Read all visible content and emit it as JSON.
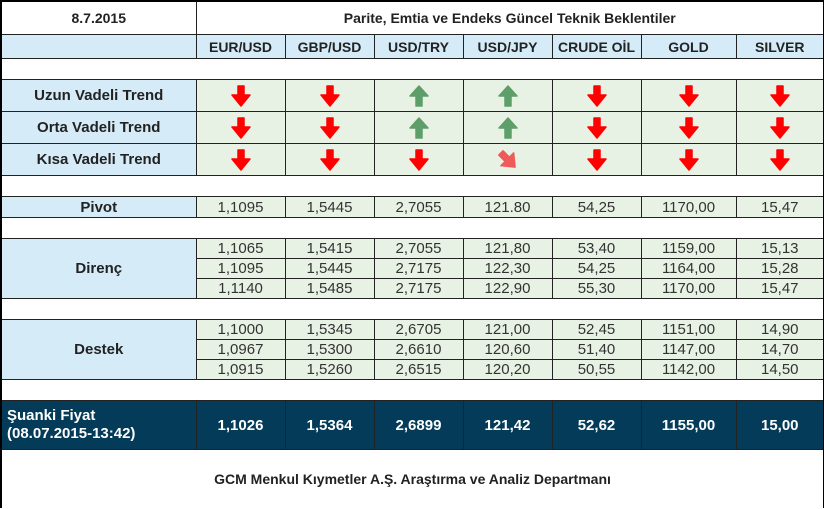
{
  "header": {
    "date": "8.7.2015",
    "title": "Parite, Emtia ve Endeks Güncel Teknik Beklentiler"
  },
  "columns": [
    "EUR/USD",
    "GBP/USD",
    "USD/TRY",
    "USD/JPY",
    "CRUDE OİL",
    "GOLD",
    "SILVER"
  ],
  "colors": {
    "header_bg": "#d5ecf8",
    "value_bg": "#e8f2e4",
    "current_bg": "#033b58",
    "arrow_down": "#ff0000",
    "arrow_up": "#5e9e69",
    "arrow_down_right": "#ef5a5a"
  },
  "trends": [
    {
      "label": "Uzun Vadeli Trend",
      "arrows": [
        "down-arrow-icon",
        "down-arrow-icon",
        "up-arrow-icon",
        "up-arrow-icon",
        "down-arrow-icon",
        "down-arrow-icon",
        "down-arrow-icon"
      ]
    },
    {
      "label": "Orta Vadeli Trend",
      "arrows": [
        "down-arrow-icon",
        "down-arrow-icon",
        "up-arrow-icon",
        "up-arrow-icon",
        "down-arrow-icon",
        "down-arrow-icon",
        "down-arrow-icon"
      ]
    },
    {
      "label": "Kısa Vadeli Trend",
      "arrows": [
        "down-arrow-icon",
        "down-arrow-icon",
        "down-arrow-icon",
        "down-right-arrow-icon",
        "down-arrow-icon",
        "down-arrow-icon",
        "down-arrow-icon"
      ]
    }
  ],
  "pivot": {
    "label": "Pivot",
    "values": [
      "1,1095",
      "1,5445",
      "2,7055",
      "121.80",
      "54,25",
      "1170,00",
      "15,47"
    ]
  },
  "direnc": {
    "label": "Direnç",
    "rows": [
      [
        "1,1065",
        "1,5415",
        "2,7055",
        "121,80",
        "53,40",
        "1159,00",
        "15,13"
      ],
      [
        "1,1095",
        "1,5445",
        "2,7175",
        "122,30",
        "54,25",
        "1164,00",
        "15,28"
      ],
      [
        "1,1140",
        "1,5485",
        "2,7175",
        "122,90",
        "55,30",
        "1170,00",
        "15,47"
      ]
    ]
  },
  "destek": {
    "label": "Destek",
    "rows": [
      [
        "1,1000",
        "1,5345",
        "2,6705",
        "121,00",
        "52,45",
        "1151,00",
        "14,90"
      ],
      [
        "1,0967",
        "1,5300",
        "2,6610",
        "120,60",
        "51,40",
        "1147,00",
        "14,70"
      ],
      [
        "1,0915",
        "1,5260",
        "2,6515",
        "120,20",
        "50,55",
        "1142,00",
        "14,50"
      ]
    ]
  },
  "current": {
    "label_line1": "Şuanki Fiyat",
    "label_line2": "(08.07.2015-13:42)",
    "values": [
      "1,1026",
      "1,5364",
      "2,6899",
      "121,42",
      "52,62",
      "1155,00",
      "15,00"
    ]
  },
  "footer": {
    "text": "GCM Menkul Kıymetler A.Ş. Araştırma ve Analiz Departmanı"
  }
}
